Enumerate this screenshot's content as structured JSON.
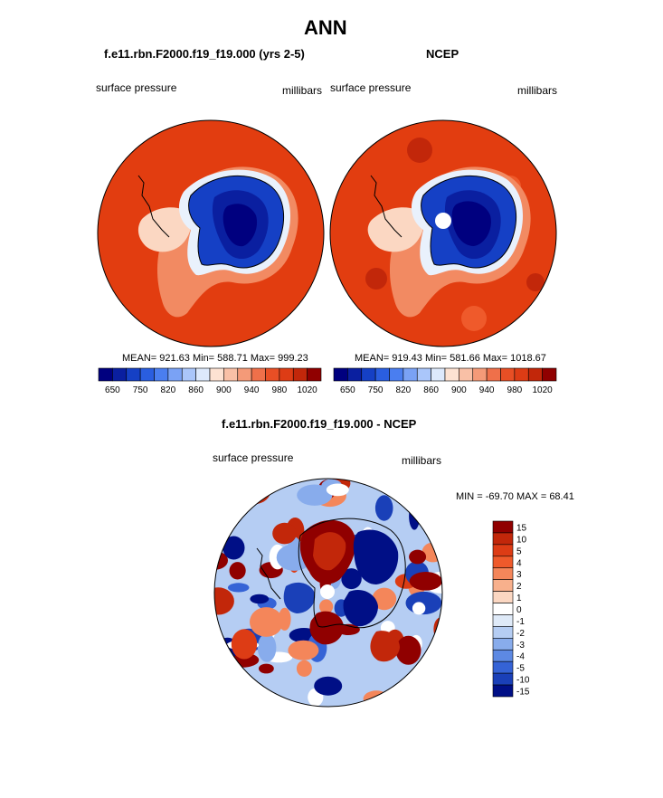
{
  "title": "ANN",
  "panels": [
    {
      "title": "f.e11.rbn.F2000.f19_f19.000 (yrs 2-5)",
      "left_label": "surface pressure",
      "right_label": "millibars",
      "stats": "MEAN= 921.63  Min= 588.71  Max= 999.23"
    },
    {
      "title": "NCEP",
      "left_label": "surface pressure",
      "right_label": "millibars",
      "stats": "MEAN= 919.43  Min= 581.66  Max= 1018.67"
    },
    {
      "title": "f.e11.rbn.F2000.f19_f19.000 - NCEP",
      "left_label": "surface pressure",
      "right_label": "millibars",
      "stats": "MIN = -69.70  MAX =  68.41"
    }
  ],
  "colorbar_abs": {
    "colors": [
      "#00007f",
      "#0a1fa0",
      "#1540c5",
      "#2a5ee0",
      "#4a7ef0",
      "#7aa2f5",
      "#aac6fa",
      "#dde9fc",
      "#fde2d2",
      "#f9c0a6",
      "#f49a78",
      "#ef704a",
      "#e84f25",
      "#dd3c15",
      "#c2270a",
      "#900000"
    ],
    "ticks": [
      "650",
      "750",
      "820",
      "860",
      "900",
      "940",
      "980",
      "1020"
    ]
  },
  "colorbar_diff": {
    "colors": [
      "#900000",
      "#c2270a",
      "#dd3c15",
      "#ef5a2b",
      "#f4865a",
      "#f8b08c",
      "#fbd7c2",
      "#ffffff",
      "#dfeaf8",
      "#b5cdf3",
      "#88acec",
      "#5d89e3",
      "#3563d6",
      "#1a40b8",
      "#000f86"
    ],
    "ticks": [
      "15",
      "10",
      "5",
      "4",
      "3",
      "2",
      "1",
      "0",
      "-1",
      "-2",
      "-3",
      "-4",
      "-5",
      "-10",
      "-15"
    ]
  }
}
